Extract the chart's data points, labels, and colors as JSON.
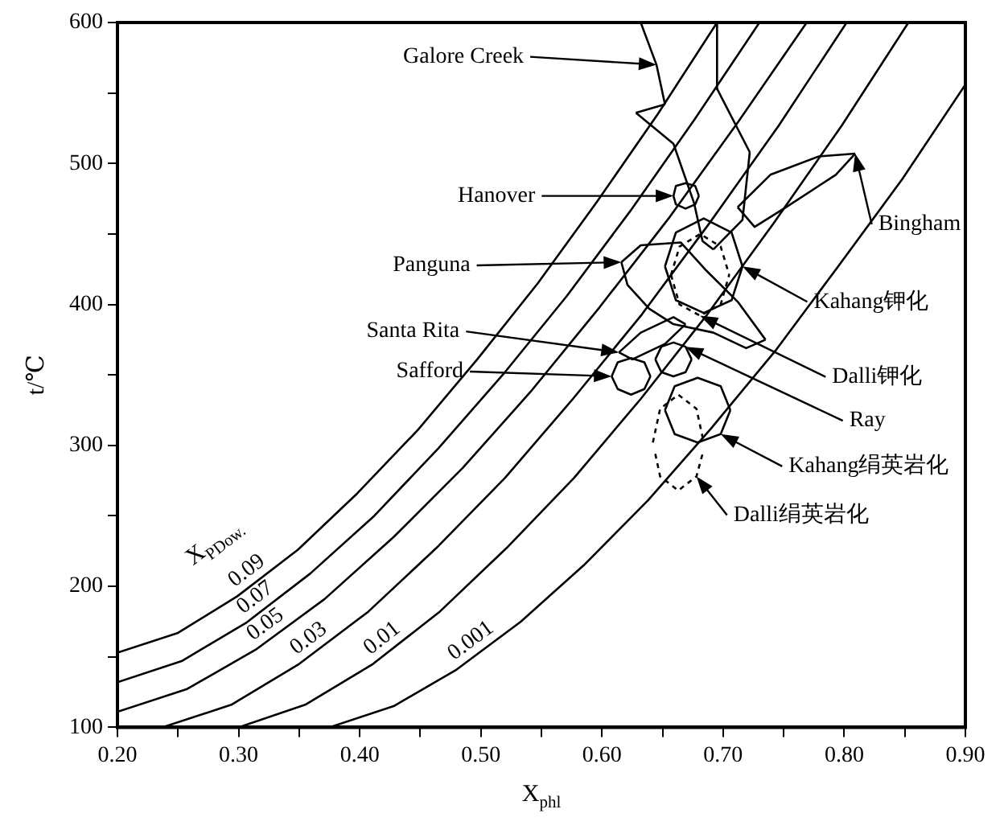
{
  "chart_data": {
    "type": "line",
    "xlabel": "X$_{phl}$",
    "ylabel": "t/℃",
    "xlim": [
      0.2,
      0.9
    ],
    "ylim": [
      100,
      600
    ],
    "xticks": [
      {
        "value": 0.2,
        "label": "0.20"
      },
      {
        "value": 0.25,
        "label": null
      },
      {
        "value": 0.3,
        "label": "0.30"
      },
      {
        "value": 0.35,
        "label": null
      },
      {
        "value": 0.4,
        "label": "0.40"
      },
      {
        "value": 0.45,
        "label": null
      },
      {
        "value": 0.5,
        "label": "0.50"
      },
      {
        "value": 0.55,
        "label": null
      },
      {
        "value": 0.6,
        "label": "0.60"
      },
      {
        "value": 0.65,
        "label": null
      },
      {
        "value": 0.7,
        "label": "0.70"
      },
      {
        "value": 0.75,
        "label": null
      },
      {
        "value": 0.8,
        "label": "0.80"
      },
      {
        "value": 0.85,
        "label": null
      },
      {
        "value": 0.9,
        "label": "0.90"
      }
    ],
    "yticks": [
      100,
      {
        "value": 150,
        "label": null
      },
      200,
      {
        "value": 250,
        "label": null
      },
      300,
      {
        "value": 350,
        "label": null
      },
      400,
      {
        "value": 450,
        "label": null
      },
      500,
      {
        "value": 550,
        "label": null
      },
      600
    ],
    "grid": false,
    "legend": false,
    "marker": "none",
    "line_style": "solid",
    "series": [
      {
        "name": "0.09",
        "color": "#000000",
        "x": [
          0.2,
          0.25,
          0.299,
          0.349,
          0.398,
          0.448,
          0.497,
          0.547,
          0.596,
          0.646,
          0.695
        ],
        "values": [
          153,
          167,
          193,
          226,
          266,
          311,
          361,
          415,
          473,
          535,
          600
        ]
      },
      {
        "name": "0.07",
        "color": "#000000",
        "x": [
          0.2,
          0.253,
          0.306,
          0.359,
          0.412,
          0.465,
          0.518,
          0.571,
          0.624,
          0.677,
          0.73
        ],
        "values": [
          132,
          147,
          174,
          209,
          250,
          298,
          350,
          406,
          467,
          532,
          600
        ]
      },
      {
        "name": "0.05",
        "color": "#000000",
        "x": [
          0.2,
          0.257,
          0.314,
          0.371,
          0.428,
          0.485,
          0.541,
          0.598,
          0.655,
          0.712,
          0.769
        ],
        "values": [
          111,
          127,
          155,
          191,
          235,
          284,
          338,
          398,
          461,
          529,
          600
        ]
      },
      {
        "name": "0.03",
        "color": "#000000",
        "x": [
          0.237,
          0.294,
          0.35,
          0.407,
          0.463,
          0.52,
          0.576,
          0.633,
          0.689,
          0.746,
          0.802
        ],
        "values": [
          100,
          116,
          145,
          182,
          227,
          277,
          333,
          393,
          458,
          527,
          600
        ]
      },
      {
        "name": "0.01",
        "color": "#000000",
        "x": [
          0.3,
          0.355,
          0.411,
          0.466,
          0.521,
          0.577,
          0.632,
          0.687,
          0.742,
          0.798,
          0.853
        ],
        "values": [
          100,
          116,
          145,
          182,
          227,
          277,
          333,
          393,
          458,
          527,
          600
        ]
      },
      {
        "name": "0.001",
        "color": "#000000",
        "x": [
          0.375,
          0.428,
          0.48,
          0.533,
          0.585,
          0.638,
          0.69,
          0.743,
          0.795,
          0.848,
          0.9
        ],
        "values": [
          100,
          115,
          141,
          175,
          215,
          261,
          312,
          367,
          427,
          489,
          556
        ]
      },
      {
        "color": "#000000",
        "x": [
          0.632,
          0.645,
          0.652
        ],
        "values": [
          600,
          570,
          542
        ]
      },
      {
        "color": "#000000",
        "x": [
          0.628,
          0.652
        ],
        "values": [
          536,
          542
        ]
      },
      {
        "color": "#000000",
        "x": [
          0.628,
          0.659,
          0.676,
          0.683,
          0.692
        ],
        "values": [
          536,
          514,
          472,
          445,
          439
        ]
      },
      {
        "color": "#000000",
        "x": [
          0.692,
          0.716,
          0.722
        ],
        "values": [
          439,
          460,
          508
        ]
      },
      {
        "color": "#000000",
        "x": [
          0.695,
          0.722
        ],
        "values": [
          553,
          508
        ]
      },
      {
        "color": "#000000",
        "x": [
          0.695,
          0.695
        ],
        "values": [
          600,
          553
        ]
      },
      {
        "color": "#000000",
        "x": [
          0.659,
          0.661,
          0.669,
          0.677,
          0.68
        ],
        "values": [
          477,
          484,
          486,
          484,
          477
        ]
      },
      {
        "color": "#000000",
        "x": [
          0.659,
          0.661,
          0.669,
          0.677,
          0.68
        ],
        "values": [
          477,
          471,
          468,
          471,
          477
        ]
      },
      {
        "color": "#000000",
        "x": [
          0.712,
          0.739,
          0.779,
          0.809
        ],
        "values": [
          469,
          492,
          505,
          507
        ]
      },
      {
        "color": "#000000",
        "x": [
          0.712,
          0.726,
          0.752,
          0.793,
          0.809
        ],
        "values": [
          469,
          455,
          469,
          492,
          507
        ]
      },
      {
        "color": "#000000",
        "x": [
          0.616,
          0.632,
          0.665,
          0.685,
          0.712,
          0.735
        ],
        "values": [
          430,
          442,
          444,
          425,
          402,
          375
        ]
      },
      {
        "color": "#000000",
        "x": [
          0.616,
          0.621,
          0.639,
          0.659,
          0.692,
          0.719,
          0.735
        ],
        "values": [
          430,
          414,
          397,
          386,
          380,
          369,
          375
        ]
      },
      {
        "color": "#000000",
        "x": [
          0.652,
          0.661,
          0.684,
          0.707,
          0.716
        ],
        "values": [
          427,
          451,
          461,
          451,
          427
        ]
      },
      {
        "color": "#000000",
        "x": [
          0.652,
          0.661,
          0.684,
          0.707,
          0.716
        ],
        "values": [
          427,
          403,
          394,
          403,
          427
        ]
      },
      {
        "color": "#000000",
        "x": [
          0.614,
          0.632,
          0.659,
          0.669
        ],
        "values": [
          366,
          380,
          391,
          386
        ]
      },
      {
        "color": "#000000",
        "x": [
          0.614,
          0.625,
          0.652,
          0.669
        ],
        "values": [
          366,
          361,
          372,
          386
        ]
      },
      {
        "color": "#000000",
        "x": [
          0.608,
          0.613,
          0.624,
          0.635,
          0.64
        ],
        "values": [
          349,
          359,
          362,
          359,
          349
        ]
      },
      {
        "color": "#000000",
        "x": [
          0.608,
          0.613,
          0.624,
          0.635,
          0.64
        ],
        "values": [
          349,
          340,
          336,
          340,
          349
        ]
      },
      {
        "color": "#000000",
        "line_style": "dotted",
        "x": [
          0.657,
          0.664,
          0.681,
          0.698,
          0.705
        ],
        "values": [
          421,
          441,
          450,
          441,
          421
        ]
      },
      {
        "color": "#000000",
        "line_style": "dotted",
        "x": [
          0.657,
          0.664,
          0.681,
          0.698,
          0.705
        ],
        "values": [
          421,
          400,
          392,
          400,
          421
        ]
      },
      {
        "color": "#000000",
        "x": [
          0.644,
          0.649,
          0.659,
          0.669,
          0.674
        ],
        "values": [
          361,
          370,
          373,
          370,
          361
        ]
      },
      {
        "color": "#000000",
        "x": [
          0.644,
          0.649,
          0.659,
          0.669,
          0.674
        ],
        "values": [
          361,
          352,
          349,
          352,
          361
        ]
      },
      {
        "color": "#000000",
        "x": [
          0.652,
          0.66,
          0.679,
          0.698,
          0.706
        ],
        "values": [
          325,
          342,
          348,
          342,
          325
        ]
      },
      {
        "color": "#000000",
        "x": [
          0.652,
          0.66,
          0.679,
          0.698,
          0.706
        ],
        "values": [
          325,
          308,
          302,
          308,
          325
        ]
      },
      {
        "color": "#000000",
        "line_style": "dotted",
        "x": [
          0.642,
          0.648,
          0.663,
          0.678,
          0.684
        ],
        "values": [
          302,
          326,
          336,
          326,
          302
        ]
      },
      {
        "color": "#000000",
        "line_style": "dotted",
        "x": [
          0.644,
          0.648,
          0.663,
          0.678,
          0.683
        ],
        "values": [
          294,
          278,
          268,
          278,
          294
        ]
      }
    ],
    "annotations": [
      "X$_{PDow.}$",
      {
        "text": "Galore Creek",
        "x": 0.645,
        "y": 570
      },
      {
        "text": "Hanover",
        "x": 0.659,
        "y": 477
      },
      {
        "text": "Bingham",
        "x": 0.809,
        "y": 507
      },
      {
        "text": "Panguna",
        "x": 0.616,
        "y": 430
      },
      {
        "text": "Kahang钾化",
        "x": 0.716,
        "y": 427
      },
      {
        "text": "Santa Rita",
        "x": 0.614,
        "y": 366
      },
      {
        "text": "Safford",
        "x": 0.608,
        "y": 349
      },
      {
        "text": "Dalli钾化",
        "x": 0.681,
        "y": 392
      },
      {
        "text": "Ray",
        "x": 0.669,
        "y": 370
      },
      {
        "text": "Kahang绢英岩化",
        "x": 0.698,
        "y": 308
      },
      {
        "text": "Dalli绢英岩化",
        "x": 0.678,
        "y": 278
      }
    ]
  }
}
